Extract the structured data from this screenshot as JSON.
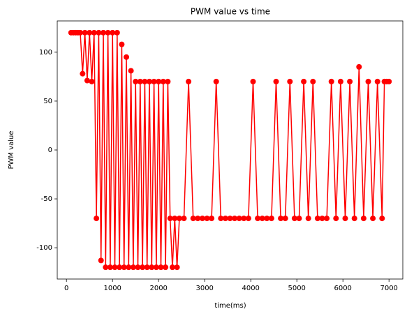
{
  "chart_data": {
    "type": "line",
    "title": "PWM value vs time",
    "x_label": "time(ms)",
    "y_label": "PWM value",
    "color": "#ff0000",
    "x": [
      100,
      150,
      200,
      250,
      300,
      350,
      400,
      450,
      500,
      550,
      600,
      650,
      700,
      750,
      800,
      850,
      900,
      950,
      1000,
      1050,
      1100,
      1150,
      1200,
      1250,
      1300,
      1350,
      1400,
      1450,
      1500,
      1550,
      1600,
      1650,
      1700,
      1750,
      1800,
      1850,
      1900,
      1950,
      2000,
      2050,
      2100,
      2150,
      2200,
      2250,
      2300,
      2350,
      2400,
      2450,
      2550,
      2650,
      2750,
      2850,
      2950,
      3050,
      3150,
      3250,
      3350,
      3450,
      3550,
      3650,
      3750,
      3850,
      3950,
      4050,
      4150,
      4250,
      4350,
      4450,
      4550,
      4650,
      4750,
      4850,
      4950,
      5050,
      5150,
      5250,
      5350,
      5450,
      5550,
      5650,
      5750,
      5850,
      5950,
      6050,
      6150,
      6250,
      6350,
      6450,
      6550,
      6650,
      6750,
      6850,
      6900,
      6950,
      7000
    ],
    "values": [
      120,
      120,
      120,
      120,
      120,
      78,
      120,
      71,
      120,
      70,
      120,
      -70,
      120,
      -113,
      120,
      -120,
      120,
      -120,
      120,
      -120,
      120,
      -120,
      108,
      -120,
      95,
      -120,
      81,
      -120,
      70,
      -120,
      70,
      -120,
      70,
      -120,
      70,
      -120,
      70,
      -120,
      70,
      -120,
      70,
      -120,
      70,
      -70,
      -120,
      -70,
      -120,
      -70,
      -70,
      70,
      -70,
      -70,
      -70,
      -70,
      -70,
      70,
      -70,
      -70,
      -70,
      -70,
      -70,
      -70,
      -70,
      70,
      -70,
      -70,
      -70,
      -70,
      70,
      -70,
      -70,
      70,
      -70,
      -70,
      70,
      -70,
      70,
      -70,
      -70,
      -70,
      70,
      -70,
      70,
      -70,
      70,
      -70,
      85,
      -70,
      70,
      -70,
      70,
      -70,
      70,
      70,
      70
    ],
    "xlim": [
      -200,
      7300
    ],
    "xticks": [
      0,
      1000,
      2000,
      3000,
      4000,
      5000,
      6000,
      7000
    ],
    "ylim": [
      -132,
      132
    ],
    "yticks": [
      -100,
      -50,
      0,
      50,
      100
    ]
  }
}
